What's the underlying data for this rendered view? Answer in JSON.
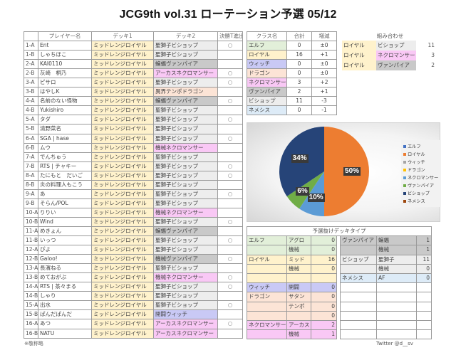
{
  "title": "JCG9th vol.31 ローテーション予選 05/12",
  "colors": {
    "elf": "#e2efd9",
    "royal": "#fff2cc",
    "witch": "#c9c9f5",
    "dragon": "#fce4d6",
    "necro": "#f9c8f5",
    "vamp": "#c9c9c9",
    "bishop": "#ededed",
    "nemesis": "#ddebf7"
  },
  "players": {
    "headers": [
      "",
      "プレイヤー名",
      "デッキ1",
      "デッキ2",
      "決勝T進出"
    ],
    "rows": [
      {
        "id": "1-A",
        "name": "Ent",
        "deck1": "ミッドレンジロイヤル",
        "deck2": "聖獅子ビショップ",
        "d2class": "bishop",
        "advance": "○"
      },
      {
        "id": "1-B",
        "name": "しゃちほこ",
        "deck1": "ミッドレンジロイヤル",
        "deck2": "聖獅子ビショップ",
        "d2class": "bishop",
        "advance": ""
      },
      {
        "id": "2-A",
        "name": "KAI0110",
        "deck1": "ミッドレンジロイヤル",
        "deck2": "蝙蝠ヴァンパイア",
        "d2class": "vamp",
        "advance": ""
      },
      {
        "id": "2-B",
        "name": "灰崎　桐乃",
        "deck1": "ミッドレンジロイヤル",
        "deck2": "アーカスネクロマンサー",
        "d2class": "necro",
        "advance": "○"
      },
      {
        "id": "3-A",
        "name": "ピサロ",
        "deck1": "ミッドレンジロイヤル",
        "deck2": "聖獅子ビショップ",
        "d2class": "bishop",
        "advance": "○"
      },
      {
        "id": "3-B",
        "name": "はやしK",
        "deck1": "ミッドレンジロイヤル",
        "deck2": "異界テンポドラゴン",
        "d2class": "dragon",
        "advance": ""
      },
      {
        "id": "4-A",
        "name": "名前のない怪物",
        "deck1": "ミッドレンジロイヤル",
        "deck2": "蝙蝠ヴァンパイア",
        "d2class": "vamp",
        "advance": "○"
      },
      {
        "id": "4-B",
        "name": "Yukishiro",
        "deck1": "ミッドレンジロイヤル",
        "deck2": "聖獅子ビショップ",
        "d2class": "bishop",
        "advance": ""
      },
      {
        "id": "5-A",
        "name": "タダ",
        "deck1": "ミッドレンジロイヤル",
        "deck2": "聖獅子ビショップ",
        "d2class": "bishop",
        "advance": "○"
      },
      {
        "id": "5-B",
        "name": "清野菜名",
        "deck1": "ミッドレンジロイヤル",
        "deck2": "聖獅子ビショップ",
        "d2class": "bishop",
        "advance": ""
      },
      {
        "id": "6-A",
        "name": "SGA | hase",
        "deck1": "ミッドレンジロイヤル",
        "deck2": "聖獅子ビショップ",
        "d2class": "bishop",
        "advance": "○"
      },
      {
        "id": "6-B",
        "name": "ムウ",
        "deck1": "ミッドレンジロイヤル",
        "deck2": "機械ネクロマンサー",
        "d2class": "necro",
        "advance": ""
      },
      {
        "id": "7-A",
        "name": "でんちゅう",
        "deck1": "ミッドレンジロイヤル",
        "deck2": "聖獅子ビショップ",
        "d2class": "bishop",
        "advance": ""
      },
      {
        "id": "7-B",
        "name": "RTS | チャキー",
        "deck1": "ミッドレンジロイヤル",
        "deck2": "聖獅子ビショップ",
        "d2class": "bishop",
        "advance": "○"
      },
      {
        "id": "8-A",
        "name": "たにもと　だいご",
        "deck1": "ミッドレンジロイヤル",
        "deck2": "聖獅子ビショップ",
        "d2class": "bishop",
        "advance": "○"
      },
      {
        "id": "8-B",
        "name": "炎の料理人もこう",
        "deck1": "ミッドレンジロイヤル",
        "deck2": "聖獅子ビショップ",
        "d2class": "bishop",
        "advance": ""
      },
      {
        "id": "9-A",
        "name": "あ",
        "deck1": "ミッドレンジロイヤル",
        "deck2": "聖獅子ビショップ",
        "d2class": "bishop",
        "advance": "○"
      },
      {
        "id": "9-B",
        "name": "そらん/POL",
        "deck1": "ミッドレンジロイヤル",
        "deck2": "聖獅子ビショップ",
        "d2class": "bishop",
        "advance": ""
      },
      {
        "id": "10-A",
        "name": "りりい",
        "deck1": "ミッドレンジロイヤル",
        "deck2": "機械ネクロマンサー",
        "d2class": "necro",
        "advance": ""
      },
      {
        "id": "10-B",
        "name": "Wind",
        "deck1": "ミッドレンジロイヤル",
        "deck2": "聖獅子ビショップ",
        "d2class": "bishop",
        "advance": "○"
      },
      {
        "id": "11-A",
        "name": "めきょん",
        "deck1": "ミッドレンジロイヤル",
        "deck2": "蝙蝠ヴァンパイア",
        "d2class": "vamp",
        "advance": ""
      },
      {
        "id": "11-B",
        "name": "いっつ",
        "deck1": "ミッドレンジロイヤル",
        "deck2": "聖獅子ビショップ",
        "d2class": "bishop",
        "advance": "○"
      },
      {
        "id": "12-A",
        "name": "ぴよ",
        "deck1": "ミッドレンジロイヤル",
        "deck2": "聖獅子ビショップ",
        "d2class": "bishop",
        "advance": ""
      },
      {
        "id": "12-B",
        "name": "Galoo!",
        "deck1": "ミッドレンジロイヤル",
        "deck2": "機械ヴァンパイア",
        "d2class": "vamp",
        "advance": "○"
      },
      {
        "id": "13-A",
        "name": "長濱ねる",
        "deck1": "ミッドレンジロイヤル",
        "deck2": "聖獅子ビショップ",
        "d2class": "bishop",
        "advance": ""
      },
      {
        "id": "13-B",
        "name": "めておがぶ",
        "deck1": "ミッドレンジロイヤル",
        "deck2": "機械ネクロマンサー",
        "d2class": "necro",
        "advance": "○"
      },
      {
        "id": "14-A",
        "name": "RTS | 茶々まる",
        "deck1": "ミッドレンジロイヤル",
        "deck2": "聖獅子ビショップ",
        "d2class": "bishop",
        "advance": "○"
      },
      {
        "id": "14-B",
        "name": "しゃり",
        "deck1": "ミッドレンジロイヤル",
        "deck2": "聖獅子ビショップ",
        "d2class": "bishop",
        "advance": ""
      },
      {
        "id": "15-A",
        "name": "出水",
        "deck1": "ミッドレンジロイヤル",
        "deck2": "聖獅子ビショップ",
        "d2class": "bishop",
        "advance": "○"
      },
      {
        "id": "15-B",
        "name": "ぱんだぱんだ",
        "deck1": "ミッドレンジロイヤル",
        "deck2": "開闢ウィッチ",
        "d2class": "witch",
        "advance": ""
      },
      {
        "id": "16-A",
        "name": "あつ",
        "deck1": "ミッドレンジロイヤル",
        "deck2": "アーカスネクロマンサー",
        "d2class": "necro",
        "advance": "○"
      },
      {
        "id": "16-B",
        "name": "NATU",
        "deck1": "ミッドレンジロイヤル",
        "deck2": "アーカスネクロマンサー",
        "d2class": "necro",
        "advance": ""
      }
    ]
  },
  "classes": {
    "headers": [
      "クラス名",
      "合計",
      "増減"
    ],
    "rows": [
      {
        "name": "エルフ",
        "key": "elf",
        "total": "0",
        "diff": "±0"
      },
      {
        "name": "ロイヤル",
        "key": "royal",
        "total": "16",
        "diff": "+1"
      },
      {
        "name": "ウィッチ",
        "key": "witch",
        "total": "0",
        "diff": "±0"
      },
      {
        "name": "ドラゴン",
        "key": "dragon",
        "total": "0",
        "diff": "±0"
      },
      {
        "name": "ネクロマンサー",
        "key": "necro",
        "total": "3",
        "diff": "+2"
      },
      {
        "name": "ヴァンパイア",
        "key": "vamp",
        "total": "2",
        "diff": "+1"
      },
      {
        "name": "ビショップ",
        "key": "bishop",
        "total": "11",
        "diff": "-3"
      },
      {
        "name": "ネメシス",
        "key": "nemesis",
        "total": "0",
        "diff": "-1"
      }
    ]
  },
  "combos": {
    "title": "組み合わせ",
    "rows": [
      {
        "a": "ロイヤル",
        "a_key": "royal",
        "b": "ビショップ",
        "b_key": "bishop",
        "count": "11"
      },
      {
        "a": "ロイヤル",
        "a_key": "royal",
        "b": "ネクロマンサー",
        "b_key": "necro",
        "count": "3"
      },
      {
        "a": "ロイヤル",
        "a_key": "royal",
        "b": "ヴァンパイア",
        "b_key": "vamp",
        "count": "2"
      }
    ]
  },
  "chart_data": {
    "type": "pie",
    "title": "",
    "categories": [
      "エルフ",
      "ロイヤル",
      "ウィッチ",
      "ドラゴン",
      "ネクロマンサー",
      "ヴァンパイア",
      "ビショップ",
      "ネメシス"
    ],
    "values": [
      0,
      16,
      0,
      0,
      3,
      2,
      11,
      0
    ],
    "percent_labels": [
      "",
      "50%",
      "",
      "",
      "10%",
      "6%",
      "34%",
      ""
    ],
    "slice_colors": [
      "#4472c4",
      "#ed7d31",
      "#a5a5a5",
      "#ffc000",
      "#5b9bd5",
      "#70ad47",
      "#264478",
      "#9e480e"
    ],
    "legend_position": "right"
  },
  "decks": {
    "title": "予選抜けデッキタイプ",
    "left": [
      {
        "cls": "エルフ",
        "key": "elf",
        "type": "アグロ",
        "count": "0"
      },
      {
        "cls": "",
        "key": "elf",
        "type": "機械",
        "count": "0"
      },
      {
        "cls": "ロイヤル",
        "key": "royal",
        "type": "ミッド",
        "count": "16"
      },
      {
        "cls": "",
        "key": "royal",
        "type": "機械",
        "count": "0"
      },
      {
        "cls": "",
        "key": "royal",
        "type": "",
        "count": ""
      },
      {
        "cls": "ウィッチ",
        "key": "witch",
        "type": "開闢",
        "count": "0"
      },
      {
        "cls": "ドラゴン",
        "key": "dragon",
        "type": "サタン",
        "count": "0"
      },
      {
        "cls": "",
        "key": "dragon",
        "type": "テンポ",
        "count": "0"
      },
      {
        "cls": "",
        "key": "dragon",
        "type": "",
        "count": "0"
      },
      {
        "cls": "ネクロマンサー",
        "key": "necro",
        "type": "アーカス",
        "count": "2"
      },
      {
        "cls": "",
        "key": "necro",
        "type": "機械",
        "count": "1"
      }
    ],
    "right": [
      {
        "cls": "ヴァンパイア",
        "key": "vamp",
        "type": "蝙蝠",
        "count": "1"
      },
      {
        "cls": "",
        "key": "vamp",
        "type": "機械",
        "count": "1"
      },
      {
        "cls": "ビショップ",
        "key": "bishop",
        "type": "聖獅子",
        "count": "11"
      },
      {
        "cls": "",
        "key": "bishop",
        "type": "機械",
        "count": "0"
      },
      {
        "cls": "ネメシス",
        "key": "nemesis",
        "type": "AF",
        "count": "0"
      },
      {
        "cls": "",
        "key": "none",
        "type": "",
        "count": ""
      },
      {
        "cls": "",
        "key": "none",
        "type": "",
        "count": ""
      },
      {
        "cls": "",
        "key": "none",
        "type": "",
        "count": ""
      },
      {
        "cls": "",
        "key": "none",
        "type": "",
        "count": ""
      },
      {
        "cls": "",
        "key": "none",
        "type": "",
        "count": ""
      },
      {
        "cls": "",
        "key": "none",
        "type": "",
        "count": ""
      }
    ]
  },
  "footnote": "※敬称略",
  "credit": "Twitter @d__sv"
}
